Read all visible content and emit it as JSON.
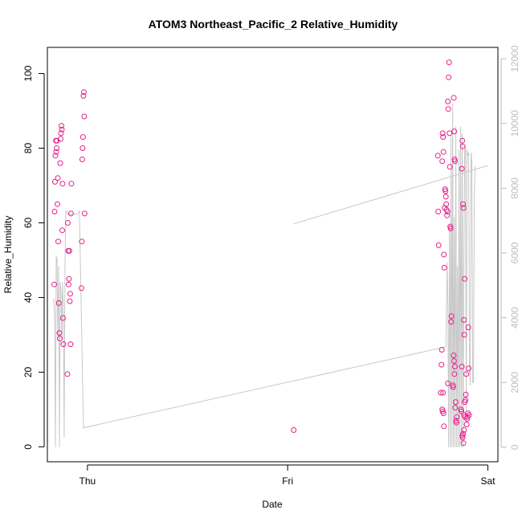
{
  "chart_data": {
    "type": "scatter",
    "title": "ATOM3 Northeast_Pacific_2 Relative_Humidity",
    "xlabel": "Date",
    "ylabel": "Relative_Humidity",
    "x_ticks": [
      {
        "label": "Thu",
        "value": 0
      },
      {
        "label": "Fri",
        "value": 1
      },
      {
        "label": "Sat",
        "value": 2
      }
    ],
    "xlim": [
      -0.2,
      2.05
    ],
    "ylim": [
      -4,
      107
    ],
    "y_ticks": [
      0,
      20,
      40,
      60,
      80,
      100
    ],
    "y2lim": [
      -450,
      12350
    ],
    "y2_ticks": [
      0,
      2000,
      4000,
      6000,
      8000,
      10000,
      12000
    ],
    "grid": false,
    "colors": {
      "points": "#e8208c",
      "secondary_line": "#c8c8c8",
      "secondary_axis": "#bdbdbd"
    },
    "series": [
      {
        "axis": "left",
        "style": "points",
        "points": [
          [
            -0.166,
            43.5
          ],
          [
            -0.164,
            63.0
          ],
          [
            -0.162,
            71.0
          ],
          [
            -0.16,
            78.0
          ],
          [
            -0.158,
            82.0
          ],
          [
            -0.156,
            79.0
          ],
          [
            -0.154,
            80.0
          ],
          [
            -0.152,
            82.0
          ],
          [
            -0.15,
            65.0
          ],
          [
            -0.148,
            72.0
          ],
          [
            -0.146,
            55.0
          ],
          [
            -0.143,
            38.5
          ],
          [
            -0.14,
            30.5
          ],
          [
            -0.138,
            29.0
          ],
          [
            -0.136,
            76.0
          ],
          [
            -0.134,
            82.5
          ],
          [
            -0.132,
            84.0
          ],
          [
            -0.13,
            86.0
          ],
          [
            -0.128,
            85.0
          ],
          [
            -0.126,
            58.0
          ],
          [
            -0.124,
            70.5
          ],
          [
            -0.122,
            34.5
          ],
          [
            -0.12,
            27.5
          ],
          [
            -0.1,
            19.5
          ],
          [
            -0.098,
            60.0
          ],
          [
            -0.096,
            52.5
          ],
          [
            -0.094,
            43.5
          ],
          [
            -0.092,
            45.0
          ],
          [
            -0.09,
            52.5
          ],
          [
            -0.088,
            39.0
          ],
          [
            -0.086,
            41.0
          ],
          [
            -0.084,
            27.5
          ],
          [
            -0.082,
            62.5
          ],
          [
            -0.08,
            70.5
          ],
          [
            -0.03,
            42.5
          ],
          [
            -0.028,
            55.0
          ],
          [
            -0.026,
            77.0
          ],
          [
            -0.024,
            80.0
          ],
          [
            -0.022,
            83.0
          ],
          [
            -0.02,
            94.0
          ],
          [
            -0.018,
            95.0
          ],
          [
            -0.016,
            88.5
          ],
          [
            -0.014,
            62.5
          ],
          [
            1.03,
            4.5
          ],
          [
            1.75,
            78.0
          ],
          [
            1.752,
            63.0
          ],
          [
            1.754,
            54.0
          ],
          [
            1.765,
            14.5
          ],
          [
            1.768,
            22.0
          ],
          [
            1.77,
            26.0
          ],
          [
            1.772,
            76.5
          ],
          [
            1.774,
            84.0
          ],
          [
            1.776,
            83.0
          ],
          [
            1.778,
            79.0
          ],
          [
            1.78,
            51.5
          ],
          [
            1.782,
            48.0
          ],
          [
            1.784,
            64.0
          ],
          [
            1.786,
            69.0
          ],
          [
            1.788,
            68.5
          ],
          [
            1.79,
            67.0
          ],
          [
            1.792,
            65.0
          ],
          [
            1.794,
            63.5
          ],
          [
            1.796,
            62.0
          ],
          [
            1.798,
            63.0
          ],
          [
            1.8,
            92.5
          ],
          [
            1.802,
            90.5
          ],
          [
            1.804,
            99.0
          ],
          [
            1.806,
            103.0
          ],
          [
            1.808,
            84.0
          ],
          [
            1.81,
            75.0
          ],
          [
            1.812,
            59.0
          ],
          [
            1.814,
            58.5
          ],
          [
            1.816,
            33.5
          ],
          [
            1.818,
            35.0
          ],
          [
            1.772,
            10.0
          ],
          [
            1.774,
            9.5
          ],
          [
            1.776,
            14.5
          ],
          [
            1.778,
            9.0
          ],
          [
            1.78,
            5.5
          ],
          [
            1.8,
            17.0
          ],
          [
            1.825,
            16.5
          ],
          [
            1.827,
            16.0
          ],
          [
            1.829,
            24.5
          ],
          [
            1.831,
            23.0
          ],
          [
            1.833,
            19.5
          ],
          [
            1.835,
            21.5
          ],
          [
            1.837,
            10.5
          ],
          [
            1.839,
            12.0
          ],
          [
            1.841,
            7.0
          ],
          [
            1.843,
            6.5
          ],
          [
            1.845,
            8.0
          ],
          [
            1.83,
            93.5
          ],
          [
            1.832,
            84.5
          ],
          [
            1.834,
            77.0
          ],
          [
            1.836,
            76.5
          ],
          [
            1.87,
            74.5
          ],
          [
            1.872,
            82.0
          ],
          [
            1.874,
            80.5
          ],
          [
            1.876,
            65.0
          ],
          [
            1.878,
            64.0
          ],
          [
            1.88,
            34.0
          ],
          [
            1.882,
            30.0
          ],
          [
            1.884,
            45.0
          ],
          [
            1.866,
            10.0
          ],
          [
            1.868,
            9.5
          ],
          [
            1.87,
            21.5
          ],
          [
            1.872,
            3.0
          ],
          [
            1.874,
            2.5
          ],
          [
            1.876,
            3.5
          ],
          [
            1.878,
            1.0
          ],
          [
            1.88,
            4.5
          ],
          [
            1.882,
            8.5
          ],
          [
            1.884,
            12.0
          ],
          [
            1.886,
            8.0
          ],
          [
            1.888,
            12.5
          ],
          [
            1.89,
            14.0
          ],
          [
            1.892,
            19.5
          ],
          [
            1.894,
            6.0
          ],
          [
            1.896,
            7.5
          ],
          [
            1.898,
            8.0
          ],
          [
            1.9,
            9.0
          ],
          [
            1.902,
            32.0
          ],
          [
            1.904,
            21.0
          ],
          [
            1.906,
            8.5
          ]
        ]
      },
      {
        "axis": "right",
        "style": "line",
        "points": [
          [
            -0.168,
            4600
          ],
          [
            -0.164,
            4000
          ],
          [
            -0.16,
            0
          ],
          [
            -0.156,
            5900
          ],
          [
            -0.152,
            5800
          ],
          [
            -0.148,
            3400
          ],
          [
            -0.144,
            5600
          ],
          [
            -0.14,
            0
          ],
          [
            -0.136,
            5100
          ],
          [
            -0.132,
            4800
          ],
          [
            -0.128,
            3300
          ],
          [
            -0.124,
            5100
          ],
          [
            -0.12,
            4300
          ],
          [
            -0.116,
            300
          ],
          [
            -0.112,
            5500
          ],
          [
            -0.108,
            7300
          ],
          [
            -0.104,
            7300
          ],
          [
            -0.1,
            7200
          ],
          [
            -0.06,
            7200
          ],
          [
            -0.05,
            7200
          ],
          [
            -0.04,
            7300
          ],
          [
            -0.02,
            600
          ],
          [
            1.79,
            3100
          ],
          [
            1.796,
            5700
          ],
          [
            1.8,
            4400
          ],
          [
            1.804,
            0
          ],
          [
            1.808,
            6900
          ],
          [
            1.812,
            0
          ],
          [
            1.816,
            9600
          ],
          [
            1.82,
            0
          ],
          [
            1.824,
            10600
          ],
          [
            1.828,
            0
          ],
          [
            1.832,
            7100
          ],
          [
            1.836,
            0
          ],
          [
            1.84,
            9900
          ],
          [
            1.844,
            0
          ],
          [
            1.848,
            5600
          ],
          [
            1.852,
            0
          ],
          [
            1.856,
            9200
          ],
          [
            1.86,
            0
          ],
          [
            1.864,
            9900
          ],
          [
            1.868,
            0
          ],
          [
            1.872,
            9700
          ],
          [
            1.876,
            0
          ],
          [
            1.88,
            5400
          ],
          [
            1.884,
            9200
          ],
          [
            1.888,
            9300
          ],
          [
            1.892,
            1100
          ],
          [
            1.896,
            9200
          ],
          [
            1.9,
            9000
          ],
          [
            1.904,
            9100
          ],
          [
            1.908,
            2400
          ],
          [
            1.912,
            1900
          ],
          [
            1.916,
            9100
          ],
          [
            1.92,
            8800
          ],
          [
            1.924,
            2000
          ],
          [
            1.928,
            2000
          ],
          [
            1.932,
            7700
          ],
          [
            1.936,
            8700
          ]
        ]
      },
      {
        "axis": "right",
        "style": "line",
        "points": [
          [
            1.03,
            6900
          ],
          [
            2.0,
            8700
          ]
        ]
      }
    ]
  }
}
